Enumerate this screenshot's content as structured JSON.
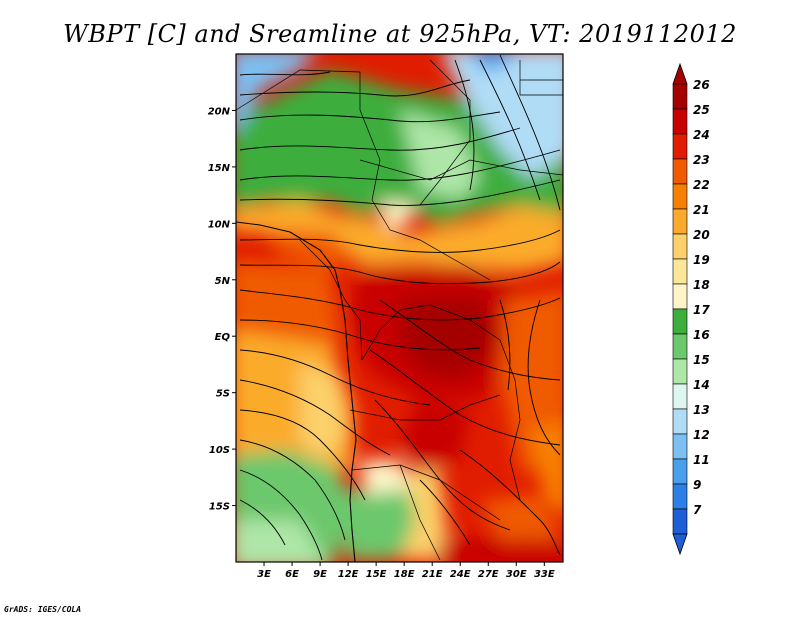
{
  "title": "WBPT [C] and Sreamline at 925hPa, VT: 2019112012",
  "credit": "GrADS: IGES/COLA",
  "map": {
    "field": "WBPT",
    "units": "C",
    "level": "925hPa",
    "valid_time": "2019112012",
    "lon_range": [
      0,
      35
    ],
    "lat_range": [
      -20,
      25
    ],
    "lon_ticks": [
      "3E",
      "6E",
      "9E",
      "12E",
      "15E",
      "18E",
      "21E",
      "24E",
      "27E",
      "30E",
      "33E"
    ],
    "lon_tick_values": [
      3,
      6,
      9,
      12,
      15,
      18,
      21,
      24,
      27,
      30,
      33
    ],
    "lat_ticks": [
      "20N",
      "15N",
      "10N",
      "5N",
      "EQ",
      "5S",
      "10S",
      "15S"
    ],
    "lat_tick_values": [
      20,
      15,
      10,
      5,
      0,
      -5,
      -10,
      -15
    ],
    "overlay": "streamlines"
  },
  "colorbar": {
    "labels": [
      "26",
      "25",
      "24",
      "23",
      "22",
      "21",
      "20",
      "19",
      "18",
      "17",
      "16",
      "15",
      "14",
      "13",
      "12",
      "11",
      "9",
      "7"
    ],
    "colors": [
      "#a50000",
      "#c80000",
      "#e11d00",
      "#f05a00",
      "#f78000",
      "#fbab2c",
      "#fcd06a",
      "#fbe69a",
      "#fdf5c8",
      "#3cae3c",
      "#6cc86c",
      "#aee6a8",
      "#def6f0",
      "#b0dcf6",
      "#7cbff2",
      "#4aa0ec",
      "#2c7fe4",
      "#1e5ed6"
    ]
  }
}
